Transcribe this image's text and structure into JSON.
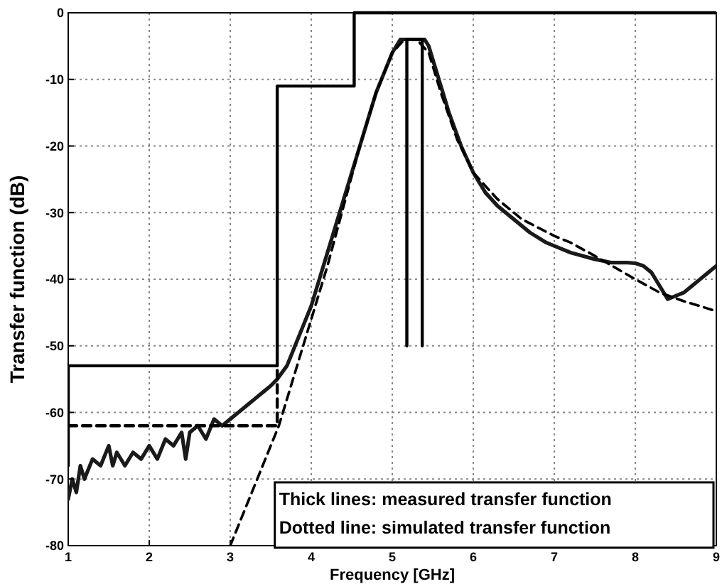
{
  "chart_data": {
    "type": "line",
    "xlabel": "Frequency  [GHz]",
    "ylabel": "Transfer function (dB)",
    "xlim": [
      1,
      9
    ],
    "ylim": [
      -80,
      0
    ],
    "xticks": [
      1,
      2,
      3,
      4,
      5,
      6,
      7,
      8,
      9
    ],
    "yticks": [
      0,
      -10,
      -20,
      -30,
      -40,
      -50,
      -60,
      -70,
      -80
    ],
    "grid": true,
    "annotations": [
      "Thick lines: measured transfer function",
      "Dotted line: simulated transfer function"
    ],
    "series": [
      {
        "color": "#1a1a1a",
        "line_style": "solid",
        "x": [
          1,
          1.05,
          1.1,
          1.15,
          1.2,
          1.3,
          1.4,
          1.5,
          1.55,
          1.6,
          1.7,
          1.8,
          1.9,
          2.0,
          2.1,
          2.2,
          2.3,
          2.4,
          2.45,
          2.5,
          2.6,
          2.7,
          2.8,
          2.9,
          3.0,
          3.1,
          3.2,
          3.3,
          3.4,
          3.5,
          3.58,
          3.7,
          3.8,
          3.9,
          4.0,
          4.1,
          4.2,
          4.3,
          4.45,
          4.6,
          4.7,
          4.8,
          4.9,
          5.0,
          5.1,
          5.2,
          5.4,
          5.45,
          5.5,
          5.6,
          5.7,
          5.85,
          6.0,
          6.15,
          6.3,
          6.5,
          6.7,
          6.9,
          7.0,
          7.2,
          7.5,
          7.7,
          7.9,
          8.0,
          8.1,
          8.2,
          8.3,
          8.4,
          8.5,
          8.6,
          8.7,
          8.8,
          8.9,
          9.0
        ],
        "values": [
          -73,
          -70,
          -72,
          -68,
          -70,
          -67,
          -68,
          -65,
          -68,
          -66,
          -68,
          -66,
          -67,
          -65,
          -67,
          -64,
          -65,
          -63,
          -67,
          -63,
          -62,
          -64,
          -61,
          -62,
          -61,
          -60,
          -59,
          -58,
          -57,
          -56,
          -55,
          -53,
          -50,
          -47,
          -44,
          -40,
          -36,
          -32,
          -26,
          -20,
          -16,
          -12,
          -9,
          -6,
          -4,
          -4,
          -4,
          -5,
          -7,
          -11,
          -15,
          -20,
          -24,
          -27,
          -29,
          -31,
          -33,
          -34.5,
          -35,
          -36,
          -37,
          -37.5,
          -37.5,
          -37.6,
          -38,
          -39,
          -41,
          -43,
          -42.5,
          -42,
          -41,
          -40,
          -39,
          -38
        ]
      },
      {
        "color": "#000000",
        "line_style": "dashed",
        "x": [
          3.0,
          3.3,
          3.6,
          3.8,
          4.0,
          4.2,
          4.4,
          4.6,
          4.8,
          5.0,
          5.15,
          5.3,
          5.45,
          5.6,
          5.8,
          6.0,
          6.3,
          6.6,
          7.0,
          7.2,
          7.5,
          7.8,
          8.0,
          8.3,
          8.6,
          9.0
        ],
        "values": [
          -80,
          -71,
          -62,
          -54,
          -46,
          -38,
          -29,
          -20,
          -12,
          -6,
          -4,
          -4,
          -6,
          -12,
          -19,
          -24,
          -28,
          -31,
          -33.5,
          -34.5,
          -36.5,
          -38.6,
          -40,
          -42,
          -43.3,
          -44.8
        ]
      },
      {
        "color": "#000000",
        "line_style": "solid",
        "x": [
          1,
          1,
          3.58,
          3.58,
          4.53,
          4.53,
          9
        ],
        "values": [
          -68,
          -53,
          -53,
          -11,
          -11,
          0,
          0
        ]
      },
      {
        "color": "#000000",
        "line_style": "dashed",
        "x": [
          1,
          3.58,
          3.58
        ],
        "values": [
          -62,
          -62,
          -53
        ]
      },
      {
        "color": "#000000",
        "line_style": "solid",
        "x": [
          5.18,
          5.18,
          5.37,
          5.37
        ],
        "values": [
          -50,
          -4,
          -4,
          -50
        ]
      }
    ]
  }
}
